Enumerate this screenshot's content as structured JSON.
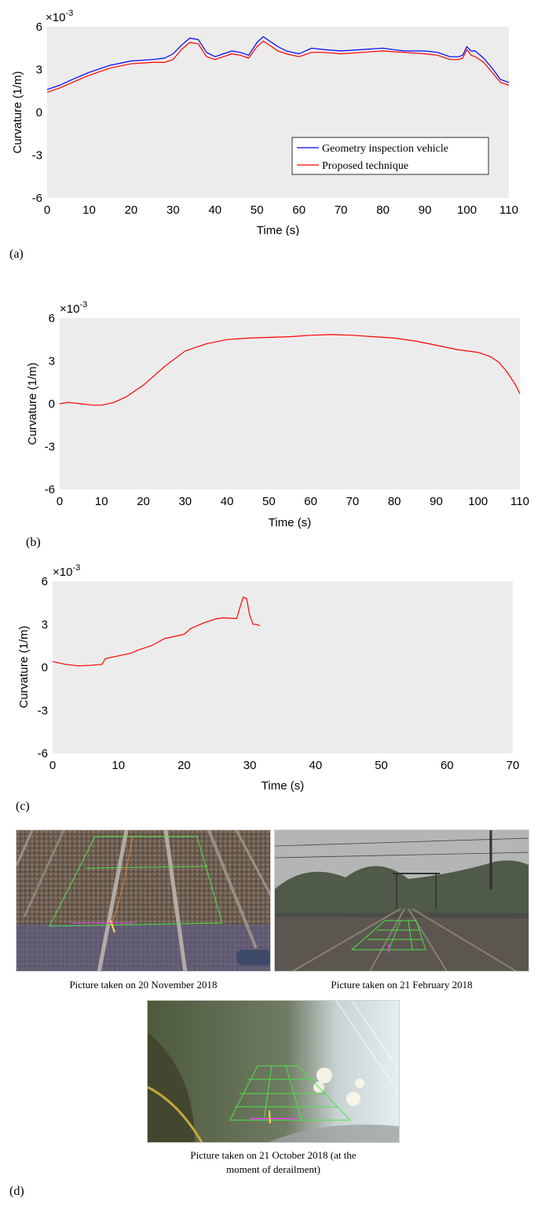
{
  "panels": {
    "a": "(a)",
    "b": "(b)",
    "c": "(c)",
    "d": "(d)"
  },
  "colors": {
    "plot_bg": "#ececec",
    "inspection": "#0000ff",
    "proposed": "#ff0000"
  },
  "chart_data": [
    {
      "type": "line",
      "xlabel": "Time (s)",
      "ylabel": "Curvature (1/m)",
      "exponent": "×10",
      "exponent_power": "-3",
      "xlim": [
        0,
        110
      ],
      "ylim": [
        -6,
        6
      ],
      "xticks": [
        "0",
        "10",
        "20",
        "30",
        "40",
        "50",
        "60",
        "70",
        "80",
        "90",
        "100",
        "110"
      ],
      "yticks": [
        "6",
        "3",
        "0",
        "-3",
        "-6"
      ],
      "legend": "bottom-right",
      "grid": false,
      "series": [
        {
          "name": "Geometry inspection vehicle",
          "color": "#0000ff",
          "x": [
            0,
            3,
            6,
            10,
            15,
            20,
            25,
            28,
            30,
            32,
            34,
            36,
            38,
            40,
            42,
            44,
            46,
            48,
            50,
            51.5,
            53,
            55,
            57,
            60,
            63,
            66,
            70,
            75,
            80,
            85,
            90,
            93,
            96,
            98,
            99,
            100,
            101,
            102,
            104,
            106,
            108,
            110
          ],
          "y": [
            1.6,
            1.9,
            2.3,
            2.8,
            3.3,
            3.6,
            3.7,
            3.8,
            4.1,
            4.7,
            5.2,
            5.1,
            4.2,
            3.9,
            4.1,
            4.3,
            4.2,
            4.0,
            4.9,
            5.3,
            5.0,
            4.6,
            4.3,
            4.1,
            4.5,
            4.4,
            4.3,
            4.4,
            4.5,
            4.3,
            4.3,
            4.2,
            3.9,
            3.9,
            4.0,
            4.6,
            4.3,
            4.3,
            3.8,
            3.1,
            2.3,
            2.1
          ]
        },
        {
          "name": "Proposed technique",
          "color": "#ff0000",
          "x": [
            0,
            3,
            6,
            10,
            15,
            20,
            25,
            28,
            30,
            32,
            34,
            36,
            38,
            40,
            42,
            44,
            46,
            48,
            50,
            51.5,
            53,
            55,
            57,
            60,
            63,
            66,
            70,
            75,
            80,
            85,
            90,
            93,
            96,
            98,
            99,
            100,
            101,
            102,
            104,
            106,
            108,
            110
          ],
          "y": [
            1.4,
            1.7,
            2.1,
            2.6,
            3.1,
            3.4,
            3.5,
            3.5,
            3.7,
            4.4,
            4.9,
            4.8,
            3.9,
            3.7,
            3.9,
            4.1,
            4.0,
            3.8,
            4.6,
            5.0,
            4.7,
            4.3,
            4.1,
            3.9,
            4.2,
            4.2,
            4.1,
            4.2,
            4.3,
            4.2,
            4.1,
            4.0,
            3.7,
            3.7,
            3.8,
            4.4,
            4.0,
            3.9,
            3.5,
            2.8,
            2.1,
            1.9
          ]
        }
      ]
    },
    {
      "type": "line",
      "xlabel": "Time (s)",
      "ylabel": "Curvature (1/m)",
      "exponent": "×10",
      "exponent_power": "-3",
      "xlim": [
        0,
        110
      ],
      "ylim": [
        -6,
        6
      ],
      "xticks": [
        "0",
        "10",
        "20",
        "30",
        "40",
        "50",
        "60",
        "70",
        "80",
        "90",
        "100",
        "110"
      ],
      "yticks": [
        "6",
        "3",
        "0",
        "-3",
        "-6"
      ],
      "grid": false,
      "series": [
        {
          "color": "#ff0000",
          "x": [
            0,
            2,
            5,
            8,
            10,
            13,
            16,
            20,
            25,
            30,
            35,
            40,
            45,
            50,
            55,
            60,
            65,
            70,
            75,
            80,
            85,
            90,
            95,
            100,
            103,
            105,
            107,
            109,
            110
          ],
          "y": [
            0.0,
            0.1,
            0.0,
            -0.1,
            -0.1,
            0.1,
            0.5,
            1.3,
            2.6,
            3.7,
            4.2,
            4.5,
            4.6,
            4.65,
            4.7,
            4.8,
            4.85,
            4.8,
            4.7,
            4.6,
            4.4,
            4.1,
            3.8,
            3.6,
            3.3,
            2.9,
            2.2,
            1.3,
            0.7
          ]
        }
      ]
    },
    {
      "type": "line",
      "xlabel": "Time (s)",
      "ylabel": "Curvature (1/m)",
      "exponent": "×10",
      "exponent_power": "-3",
      "xlim": [
        0,
        70
      ],
      "ylim": [
        -6,
        6
      ],
      "xticks": [
        "0",
        "10",
        "20",
        "30",
        "40",
        "50",
        "60",
        "70"
      ],
      "yticks": [
        "6",
        "3",
        "0",
        "-3",
        "-6"
      ],
      "grid": false,
      "series": [
        {
          "color": "#ff0000",
          "x": [
            0,
            2,
            4,
            6,
            7.5,
            8,
            9,
            10,
            12,
            13,
            15,
            17,
            20,
            21,
            23,
            25,
            26,
            28,
            28.5,
            29,
            29.5,
            30,
            30.5,
            31,
            31.5
          ],
          "y": [
            0.4,
            0.2,
            0.1,
            0.15,
            0.2,
            0.6,
            0.7,
            0.8,
            1.0,
            1.2,
            1.5,
            2.0,
            2.3,
            2.7,
            3.1,
            3.4,
            3.45,
            3.4,
            4.2,
            4.9,
            4.8,
            3.6,
            3.0,
            3.0,
            2.9
          ]
        }
      ]
    }
  ],
  "photos": {
    "captions": [
      "Picture taken on 20 November 2018",
      "Picture taken on 21 February  2018",
      "Picture taken on 21 October 2018 (at the",
      "moment of derailment)"
    ]
  }
}
